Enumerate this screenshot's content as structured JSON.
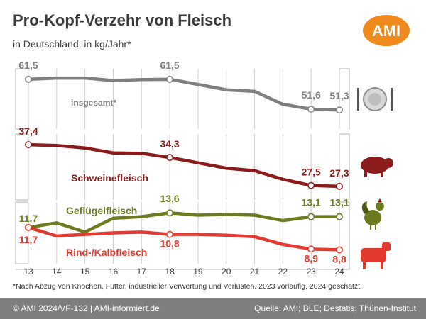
{
  "header": {
    "title": "Pro-Kopf-Verzehr von Fleisch",
    "subtitle": "in Deutschland, in kg/Jahr*",
    "logo_text": "AMI"
  },
  "colors": {
    "gesamt": "#7f7f7f",
    "schwein": "#8b1a1a",
    "gefluegel": "#6e7a1e",
    "rind": "#e3392f",
    "logo": "#f08a1c",
    "footer": "#7f7f7f"
  },
  "icons": [
    "plate-cutlery-icon",
    "pig-icon",
    "rooster-icon",
    "cow-icon"
  ],
  "footnote": "*Nach Abzug von Knochen, Futter, industrieller Verwertung und Verlusten. 2023 vorläufig, 2024 geschätzt.",
  "footer": {
    "left": "© AMI 2024/VF-132 | AMI-informiert.de",
    "right": "Quelle: AMI; BLE; Destatis; Thünen-Institut"
  },
  "chart_data": {
    "type": "line",
    "x": [
      "13",
      "14",
      "15",
      "16",
      "17",
      "18",
      "19",
      "20",
      "21",
      "22",
      "23",
      "24"
    ],
    "grid": true,
    "series": [
      {
        "name": "insgesamt*",
        "panel": 0,
        "values": [
          61.5,
          61.9,
          61.9,
          61.1,
          61.4,
          61.5,
          59.8,
          58.0,
          57.5,
          53.2,
          51.6,
          51.3
        ],
        "labels": [
          "61,5",
          "",
          "",
          "",
          "",
          "61,5",
          "",
          "",
          "",
          "",
          "51,6",
          "51,3"
        ]
      },
      {
        "name": "Schweinefleisch",
        "panel": 1,
        "values": [
          37.4,
          37.2,
          36.6,
          35.4,
          35.3,
          34.3,
          33.0,
          31.7,
          31.1,
          29.0,
          27.5,
          27.3
        ],
        "labels": [
          "37,4",
          "",
          "",
          "",
          "",
          "34,3",
          "",
          "",
          "",
          "",
          "27,5",
          "27,3"
        ]
      },
      {
        "name": "Geflügelfleisch",
        "panel": 2,
        "values": [
          11.7,
          12.3,
          11.1,
          12.9,
          13.1,
          13.6,
          13.3,
          13.4,
          13.3,
          12.6,
          13.1,
          13.1
        ],
        "labels": [
          "11,7",
          "",
          "",
          "",
          "",
          "13,6",
          "",
          "",
          "",
          "",
          "13,1",
          "13,1"
        ]
      },
      {
        "name": "Rind-/Kalbfleisch",
        "panel": 2,
        "values": [
          11.7,
          10.6,
          10.8,
          11.0,
          11.1,
          10.8,
          10.8,
          10.7,
          10.5,
          9.5,
          8.9,
          8.8
        ],
        "labels": [
          "11,7",
          "",
          "",
          "",
          "",
          "10,8",
          "",
          "",
          "",
          "",
          "8,9",
          "8,8"
        ]
      }
    ]
  }
}
